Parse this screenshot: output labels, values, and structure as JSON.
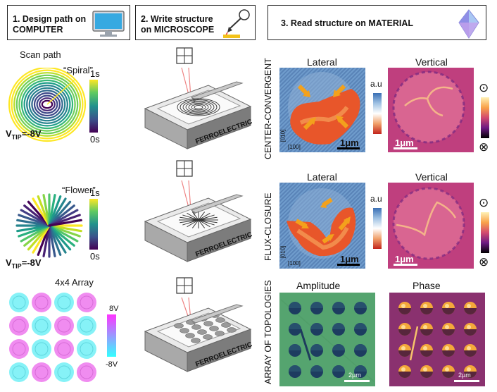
{
  "headers": {
    "step1_line1": "1. Design path on",
    "step1_line2": "COMPUTER",
    "step2_line1": "2. Write structure",
    "step2_line2": "on MICROSCOPE",
    "step3": "3. Read structure on MATERIAL"
  },
  "left_column": {
    "scan_path_title": "Scan path",
    "spiral_label": "“Spiral”",
    "flower_label": "“Flower”",
    "array_label": "4x4 Array",
    "time_top": "1s",
    "time_bottom": "0s",
    "vtip_main": "V",
    "vtip_sub": "TIP",
    "vtip_value": "=-8V",
    "voltage_top": "8V",
    "voltage_bottom": "-8V"
  },
  "middle_column": {
    "device_label": "FERROELECTRIC"
  },
  "right_column": {
    "row1_label": "CENTER-CONVERGENT",
    "row2_label": "FLUX-CLOSURE",
    "row3_label": "ARRAY OF TOPOLOGIES",
    "lateral": "Lateral",
    "vertical": "Vertical",
    "amplitude": "Amplitude",
    "phase": "Phase",
    "au": "a.u",
    "scale_1um": "1μm",
    "scale_2um": "2μm",
    "axis_010": "[010]",
    "axis_100": "[100]",
    "out_of_plane_symbol": "⊙",
    "into_plane_symbol": "⊗"
  },
  "colors": {
    "viridis_top": "#fde725",
    "viridis_mid": "#21918c",
    "viridis_bottom": "#440154",
    "cool_top": "#ff33ff",
    "cool_bottom": "#33ffff",
    "lateral_blue": "#5d8fc9",
    "lateral_orange": "#e8562a",
    "vertical_magenta": "#b7418a",
    "amplitude_green": "#4fa36a",
    "phase_purple": "#7a2a69",
    "arrow_orange": "#f3a11c"
  }
}
